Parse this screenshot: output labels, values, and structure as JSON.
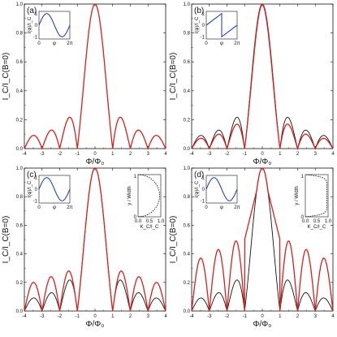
{
  "colors": {
    "red": "#d62020",
    "black": "#111111",
    "blue": "#2a48a0"
  },
  "shared": {
    "xlabel": "Φ/Φ₀",
    "ylabel": "I_C/I_C(B=0)",
    "inset_xlabel": "φ",
    "inset_ylabel": "I(φ)/I_C",
    "profile_xlabel": "K_C/I_C",
    "profile_ylabel": "y / Width"
  },
  "chart_data": [
    {
      "type": "line",
      "panel": "(a)",
      "xlim": [
        -4,
        4
      ],
      "ylim": [
        0,
        1.0
      ],
      "x_ticks": [
        "-4",
        "-3",
        "-2",
        "-1",
        "0",
        "1",
        "2",
        "3",
        "4"
      ],
      "y_ticks": [
        "0.0",
        "0.2",
        "0.4",
        "0.6",
        "0.8",
        "1.0"
      ],
      "series": [
        {
          "color": "red",
          "kind": "sinc",
          "x": [
            -4,
            -3.5,
            -3,
            -2.5,
            -2,
            -1.5,
            -1,
            -0.5,
            0,
            0.5,
            1,
            1.5,
            2,
            2.5,
            3,
            3.5,
            4
          ],
          "y": [
            0,
            0.09,
            0,
            0.13,
            0,
            0.21,
            0,
            0.64,
            1.0,
            0.64,
            0,
            0.21,
            0,
            0.13,
            0,
            0.09,
            0
          ]
        }
      ],
      "inset": {
        "type": "sinusoidal",
        "x_ticks": [
          "0",
          "φ",
          "2π"
        ],
        "y_ticks": [
          "1",
          "0",
          "-1"
        ]
      }
    },
    {
      "type": "line",
      "panel": "(b)",
      "xlim": [
        -4,
        4
      ],
      "ylim": [
        0,
        1.0
      ],
      "x_ticks": [
        "-4",
        "-3",
        "-2",
        "-1",
        "0",
        "1",
        "2",
        "3",
        "4"
      ],
      "y_ticks": [
        "0.0",
        "0.2",
        "0.4",
        "0.6",
        "0.8",
        "1.0"
      ],
      "series": [
        {
          "color": "black",
          "kind": "sinc",
          "x": [
            -4,
            -3,
            -2,
            -1,
            0,
            1,
            2,
            3,
            4
          ],
          "y": [
            0,
            0,
            0,
            0,
            1.0,
            0,
            0,
            0,
            0
          ]
        },
        {
          "color": "red",
          "kind": "sawtooth",
          "x": [
            -4,
            -3,
            -2,
            -1,
            0,
            1,
            2,
            3,
            4
          ],
          "y": [
            0.02,
            0.03,
            0.03,
            0.04,
            1.0,
            0.04,
            0.03,
            0.03,
            0.02
          ]
        }
      ],
      "inset": {
        "type": "sawtooth",
        "x_ticks": [
          "0",
          "φ",
          "2π"
        ],
        "y_ticks": [
          "1",
          "0",
          "-1"
        ]
      }
    },
    {
      "type": "line",
      "panel": "(c)",
      "xlim": [
        -4,
        4
      ],
      "ylim": [
        0,
        1.0
      ],
      "x_ticks": [
        "-4",
        "-3",
        "-2",
        "-1",
        "0",
        "1",
        "2",
        "3",
        "4"
      ],
      "y_ticks": [
        "0.0",
        "0.2",
        "0.4",
        "0.6",
        "0.8",
        "1.0"
      ],
      "series": [
        {
          "color": "black",
          "kind": "sinc",
          "x": [
            -1.5,
            -0.5,
            0,
            0.5,
            1.5
          ],
          "y": [
            0.21,
            0.64,
            1.0,
            0.64,
            0.21
          ]
        },
        {
          "color": "red",
          "kind": "nonuniform",
          "x": [
            -3.5,
            -2.5,
            -1.5,
            -0.5,
            0,
            0.5,
            1.5,
            2.5,
            3.5
          ],
          "y": [
            0.2,
            0.27,
            0.36,
            0.72,
            1.0,
            0.72,
            0.36,
            0.27,
            0.2
          ]
        }
      ],
      "inset": {
        "type": "sinusoidal",
        "x_ticks": [
          "0",
          "φ",
          "2π"
        ],
        "y_ticks": [
          "1",
          "0",
          "-1"
        ]
      },
      "profile": {
        "shape": "dome",
        "x_ticks": [
          "0.0",
          "0.5",
          "1.0"
        ],
        "y_ticks": [
          "0",
          "1"
        ]
      }
    },
    {
      "type": "line",
      "panel": "(d)",
      "xlim": [
        -4,
        4
      ],
      "ylim": [
        0,
        1.0
      ],
      "x_ticks": [
        "-4",
        "-3",
        "-2",
        "-1",
        "0",
        "1",
        "2",
        "3",
        "4"
      ],
      "y_ticks": [
        "0.0",
        "0.2",
        "0.4",
        "0.6",
        "0.8",
        "1.0"
      ],
      "series": [
        {
          "color": "black",
          "kind": "sinc",
          "x": [
            -1.5,
            -0.5,
            0,
            0.5,
            1.5
          ],
          "y": [
            0.21,
            0.64,
            1.0,
            0.64,
            0.21
          ]
        },
        {
          "color": "red",
          "kind": "nonuniform",
          "x": [
            -3.5,
            -2.5,
            -1.5,
            -0.5,
            0,
            0.5,
            1.5,
            2.5,
            3.5
          ],
          "y": [
            0.34,
            0.42,
            0.52,
            0.79,
            1.0,
            0.79,
            0.52,
            0.42,
            0.34
          ]
        }
      ],
      "inset": {
        "type": "sinusoidal",
        "x_ticks": [
          "0",
          "φ",
          "2π"
        ],
        "y_ticks": [
          "1",
          "0",
          "-1"
        ]
      },
      "profile": {
        "shape": "flat",
        "x_ticks": [
          "0.0",
          "0.5",
          "1.0"
        ],
        "y_ticks": [
          "0",
          "1"
        ]
      }
    }
  ]
}
